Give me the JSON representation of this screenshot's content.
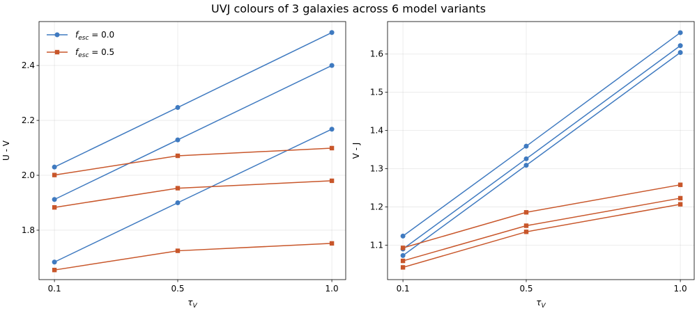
{
  "figure": {
    "title": "UVJ colours of 3 galaxies across 6 model variants"
  },
  "colors": {
    "fesc_0_0": "#3f7ac0",
    "fesc_0_5": "#c8562a"
  },
  "legend": {
    "entries": [
      {
        "label_main": "f",
        "label_sub": "esc",
        "label_tail": " = 0.0",
        "marker": "circle",
        "color": "#3f7ac0"
      },
      {
        "label_main": "f",
        "label_sub": "esc",
        "label_tail": " = 0.5",
        "marker": "square",
        "color": "#c8562a"
      }
    ],
    "placement": "upper-left"
  },
  "chart_data": [
    {
      "type": "line",
      "panel": "left",
      "x": [
        0.1,
        0.5,
        1.0
      ],
      "xticks": [
        "0.1",
        "0.5",
        "1.0"
      ],
      "xlabel_main": "τ",
      "xlabel_sub": "V",
      "ylabel": "U - V",
      "xlim": [
        0.05,
        1.045
      ],
      "ylim": [
        1.62,
        2.56
      ],
      "yticks": [
        1.8,
        2.0,
        2.2,
        2.4
      ],
      "ytick_labels": [
        "1.8",
        "2.0",
        "2.2",
        "2.4"
      ],
      "grid": true,
      "legend": true,
      "series": [
        {
          "group": "fesc_0_0",
          "marker": "circle",
          "values": [
            2.03,
            2.247,
            2.52
          ]
        },
        {
          "group": "fesc_0_0",
          "marker": "circle",
          "values": [
            1.912,
            2.129,
            2.4
          ]
        },
        {
          "group": "fesc_0_0",
          "marker": "circle",
          "values": [
            1.684,
            1.9,
            2.168
          ]
        },
        {
          "group": "fesc_0_5",
          "marker": "square",
          "values": [
            2.001,
            2.071,
            2.099
          ]
        },
        {
          "group": "fesc_0_5",
          "marker": "square",
          "values": [
            1.883,
            1.953,
            1.98
          ]
        },
        {
          "group": "fesc_0_5",
          "marker": "square",
          "values": [
            1.655,
            1.725,
            1.752
          ]
        }
      ]
    },
    {
      "type": "line",
      "panel": "right",
      "x": [
        0.1,
        0.5,
        1.0
      ],
      "xticks": [
        "0.1",
        "0.5",
        "1.0"
      ],
      "xlabel_main": "τ",
      "xlabel_sub": "V",
      "ylabel": "V - J",
      "xlim": [
        0.05,
        1.045
      ],
      "ylim": [
        1.01,
        1.685
      ],
      "yticks": [
        1.1,
        1.2,
        1.3,
        1.4,
        1.5,
        1.6
      ],
      "ytick_labels": [
        "1.1",
        "1.2",
        "1.3",
        "1.4",
        "1.5",
        "1.6"
      ],
      "grid": true,
      "legend": false,
      "series": [
        {
          "group": "fesc_0_0",
          "marker": "circle",
          "values": [
            1.124,
            1.359,
            1.656
          ]
        },
        {
          "group": "fesc_0_0",
          "marker": "circle",
          "values": [
            1.09,
            1.326,
            1.622
          ]
        },
        {
          "group": "fesc_0_0",
          "marker": "circle",
          "values": [
            1.073,
            1.309,
            1.604
          ]
        },
        {
          "group": "fesc_0_5",
          "marker": "square",
          "values": [
            1.093,
            1.186,
            1.258
          ]
        },
        {
          "group": "fesc_0_5",
          "marker": "square",
          "values": [
            1.059,
            1.151,
            1.223
          ]
        },
        {
          "group": "fesc_0_5",
          "marker": "square",
          "values": [
            1.042,
            1.135,
            1.207
          ]
        }
      ]
    }
  ]
}
